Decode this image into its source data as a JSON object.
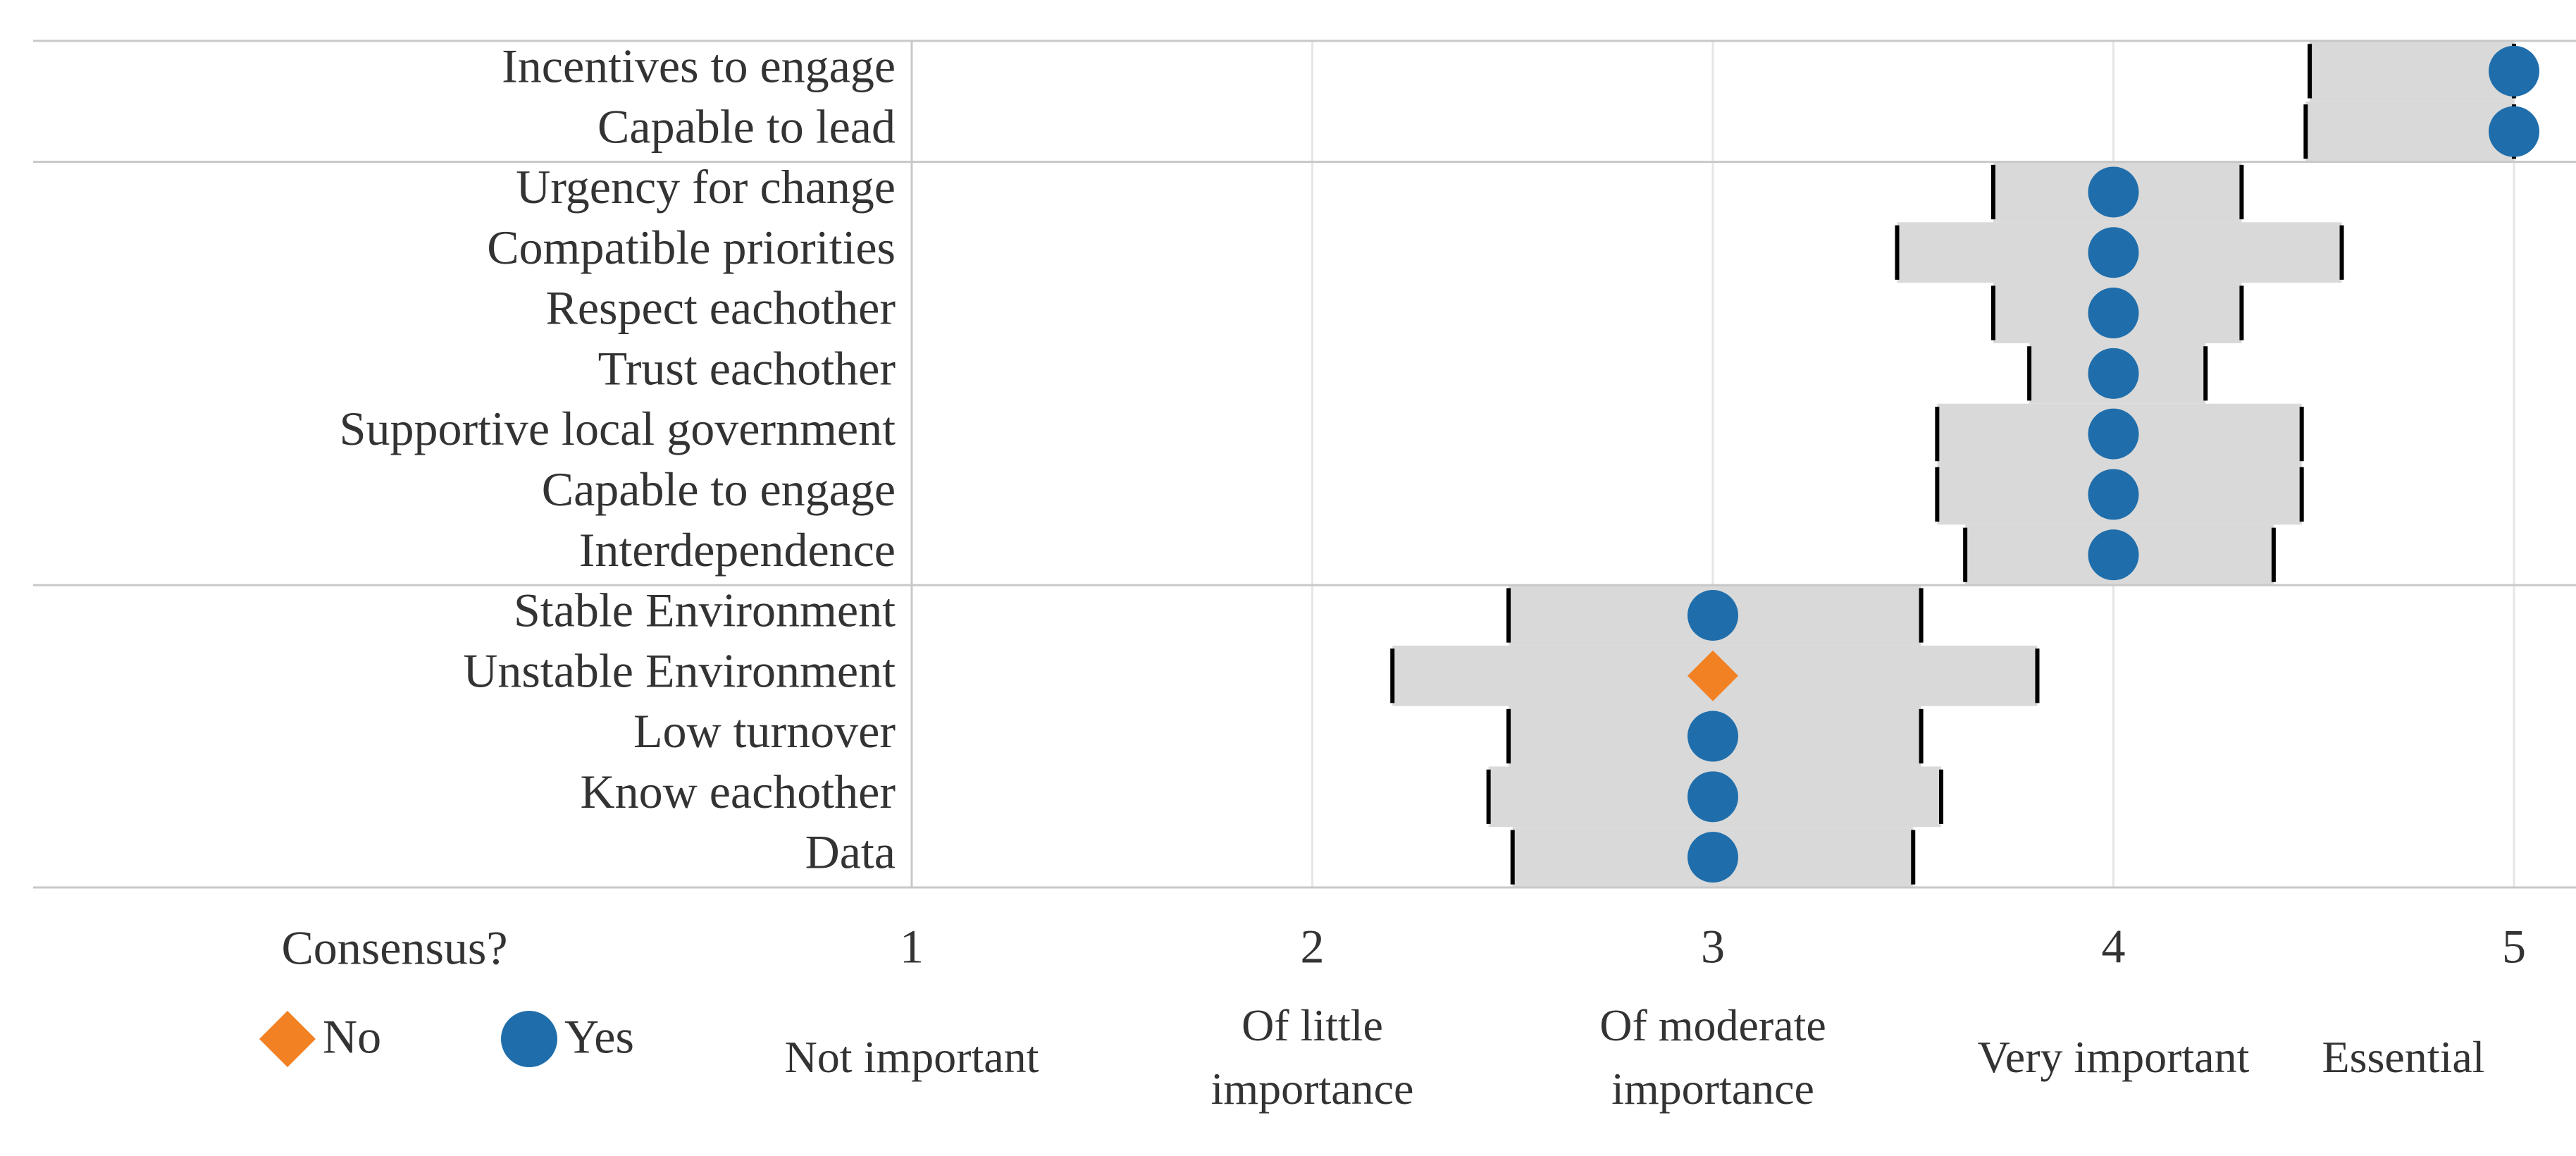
{
  "chart_data": {
    "type": "range-dot",
    "categories": [
      "Incentives to engage",
      "Capable to lead",
      "Urgency for change",
      "Compatible priorities",
      "Respect eachother",
      "Trust eachother",
      "Supportive local government",
      "Capable to engage",
      "Interdependence",
      "Stable Environment",
      "Unstable Environment",
      "Low turnover",
      "Know eachother",
      "Data"
    ],
    "values": [
      5,
      5,
      4,
      4,
      4,
      4,
      4,
      4,
      4,
      3,
      3,
      3,
      3,
      3
    ],
    "low": [
      4.49,
      4.48,
      3.7,
      3.46,
      3.7,
      3.79,
      3.56,
      3.56,
      3.63,
      2.49,
      2.2,
      2.49,
      2.44,
      2.5
    ],
    "high": [
      5,
      5,
      4.32,
      4.57,
      4.32,
      4.23,
      4.47,
      4.47,
      4.4,
      3.52,
      3.81,
      3.52,
      3.57,
      3.5
    ],
    "consensus": [
      "Yes",
      "Yes",
      "Yes",
      "Yes",
      "Yes",
      "Yes",
      "Yes",
      "Yes",
      "Yes",
      "Yes",
      "No",
      "Yes",
      "Yes",
      "Yes"
    ],
    "group_starts": [
      0,
      2,
      9
    ],
    "range_color": "#d9d9d9",
    "xlim": [
      1,
      5
    ],
    "xticks": [
      1,
      2,
      3,
      4,
      5
    ],
    "xtick_descriptions": [
      "Not important",
      "Of little importance",
      "Of moderate importance",
      "Very important",
      "Essential"
    ],
    "grid": true,
    "legend": {
      "title": "Consensus?",
      "entries": [
        {
          "name": "No",
          "color": "#f28124",
          "marker": "diamond"
        },
        {
          "name": "Yes",
          "color": "#1f6eab",
          "marker": "circle"
        }
      ]
    }
  }
}
